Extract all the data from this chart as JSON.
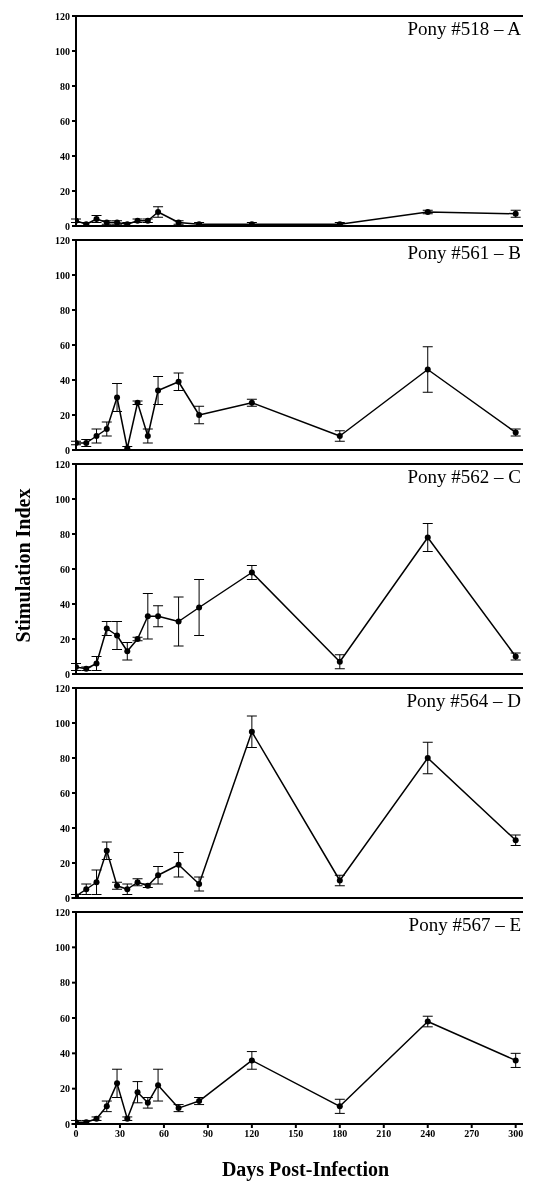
{
  "chart_data": [
    {
      "type": "line",
      "title": "Pony #518 – A",
      "x": [
        0,
        7,
        14,
        21,
        28,
        35,
        42,
        49,
        56,
        70,
        84,
        120,
        180,
        240,
        300
      ],
      "xlim": [
        0,
        305
      ],
      "xticks": [
        0,
        30,
        60,
        90,
        120,
        150,
        180,
        210,
        240,
        270,
        300
      ],
      "ylim": [
        0,
        120
      ],
      "yticks": [
        0,
        20,
        40,
        60,
        80,
        100,
        120
      ],
      "tick_labels": "y",
      "marker": "circle",
      "line_style": "solid",
      "grid": false,
      "series": [
        {
          "color": "#000000",
          "values": [
            3,
            1,
            4,
            2,
            2,
            1,
            3,
            3,
            8,
            2,
            1,
            1,
            1,
            8,
            7
          ],
          "errors": [
            1,
            1,
            2,
            1,
            1,
            1,
            1,
            1,
            3,
            1,
            1,
            1,
            1,
            1,
            2
          ]
        }
      ]
    },
    {
      "type": "line",
      "title": "Pony #561 – B",
      "x": [
        0,
        7,
        14,
        21,
        28,
        35,
        42,
        49,
        56,
        70,
        84,
        120,
        180,
        240,
        300
      ],
      "xlim": [
        0,
        305
      ],
      "xticks": [
        0,
        30,
        60,
        90,
        120,
        150,
        180,
        210,
        240,
        270,
        300
      ],
      "ylim": [
        0,
        120
      ],
      "yticks": [
        0,
        20,
        40,
        60,
        80,
        100,
        120
      ],
      "tick_labels": "y",
      "marker": "circle",
      "line_style": "solid",
      "grid": false,
      "series": [
        {
          "color": "#000000",
          "values": [
            4,
            4,
            8,
            12,
            30,
            1,
            27,
            8,
            34,
            39,
            20,
            27,
            8,
            46,
            10
          ],
          "errors": [
            1,
            2,
            4,
            4,
            8,
            1,
            1,
            4,
            8,
            5,
            5,
            2,
            3,
            13,
            2
          ]
        }
      ]
    },
    {
      "type": "line",
      "title": "Pony #562 – C",
      "ylabel": "Stimulation Index",
      "x": [
        0,
        7,
        14,
        21,
        28,
        35,
        42,
        49,
        56,
        70,
        84,
        120,
        180,
        240,
        300
      ],
      "xlim": [
        0,
        305
      ],
      "xticks": [
        0,
        30,
        60,
        90,
        120,
        150,
        180,
        210,
        240,
        270,
        300
      ],
      "ylim": [
        0,
        120
      ],
      "yticks": [
        0,
        20,
        40,
        60,
        80,
        100,
        120
      ],
      "tick_labels": "y",
      "marker": "circle",
      "line_style": "solid",
      "grid": false,
      "series": [
        {
          "color": "#000000",
          "values": [
            4,
            3,
            6,
            26,
            22,
            13,
            20,
            33,
            33,
            30,
            38,
            58,
            7,
            78,
            10
          ],
          "errors": [
            2,
            1,
            4,
            4,
            8,
            5,
            1,
            13,
            6,
            14,
            16,
            4,
            4,
            8,
            2
          ]
        }
      ]
    },
    {
      "type": "line",
      "title": "Pony #564 – D",
      "x": [
        0,
        7,
        14,
        21,
        28,
        35,
        42,
        49,
        56,
        70,
        84,
        120,
        180,
        240,
        300
      ],
      "xlim": [
        0,
        305
      ],
      "xticks": [
        0,
        30,
        60,
        90,
        120,
        150,
        180,
        210,
        240,
        270,
        300
      ],
      "ylim": [
        0,
        120
      ],
      "yticks": [
        0,
        20,
        40,
        60,
        80,
        100,
        120
      ],
      "tick_labels": "y",
      "marker": "circle",
      "line_style": "solid",
      "grid": false,
      "series": [
        {
          "color": "#000000",
          "values": [
            1,
            5,
            9,
            27,
            7,
            5,
            9,
            7,
            13,
            19,
            8,
            95,
            10,
            80,
            33
          ],
          "errors": [
            1,
            3,
            7,
            5,
            2,
            3,
            2,
            1,
            5,
            7,
            4,
            9,
            3,
            9,
            3
          ]
        }
      ]
    },
    {
      "type": "line",
      "title": "Pony #567 – E",
      "xlabel": "Days Post-Infection",
      "x": [
        0,
        7,
        14,
        21,
        28,
        35,
        42,
        49,
        56,
        70,
        84,
        120,
        180,
        240,
        300
      ],
      "xlim": [
        0,
        305
      ],
      "xticks": [
        0,
        30,
        60,
        90,
        120,
        150,
        180,
        210,
        240,
        270,
        300
      ],
      "ylim": [
        0,
        120
      ],
      "yticks": [
        0,
        20,
        40,
        60,
        80,
        100,
        120
      ],
      "marker": "circle",
      "line_style": "solid",
      "grid": false,
      "series": [
        {
          "color": "#000000",
          "values": [
            1,
            1,
            3,
            10,
            23,
            3,
            18,
            12,
            22,
            9,
            13,
            36,
            10,
            58,
            36
          ],
          "errors": [
            1,
            1,
            1,
            3,
            8,
            1,
            6,
            3,
            9,
            2,
            2,
            5,
            4,
            3,
            4
          ]
        }
      ]
    }
  ]
}
